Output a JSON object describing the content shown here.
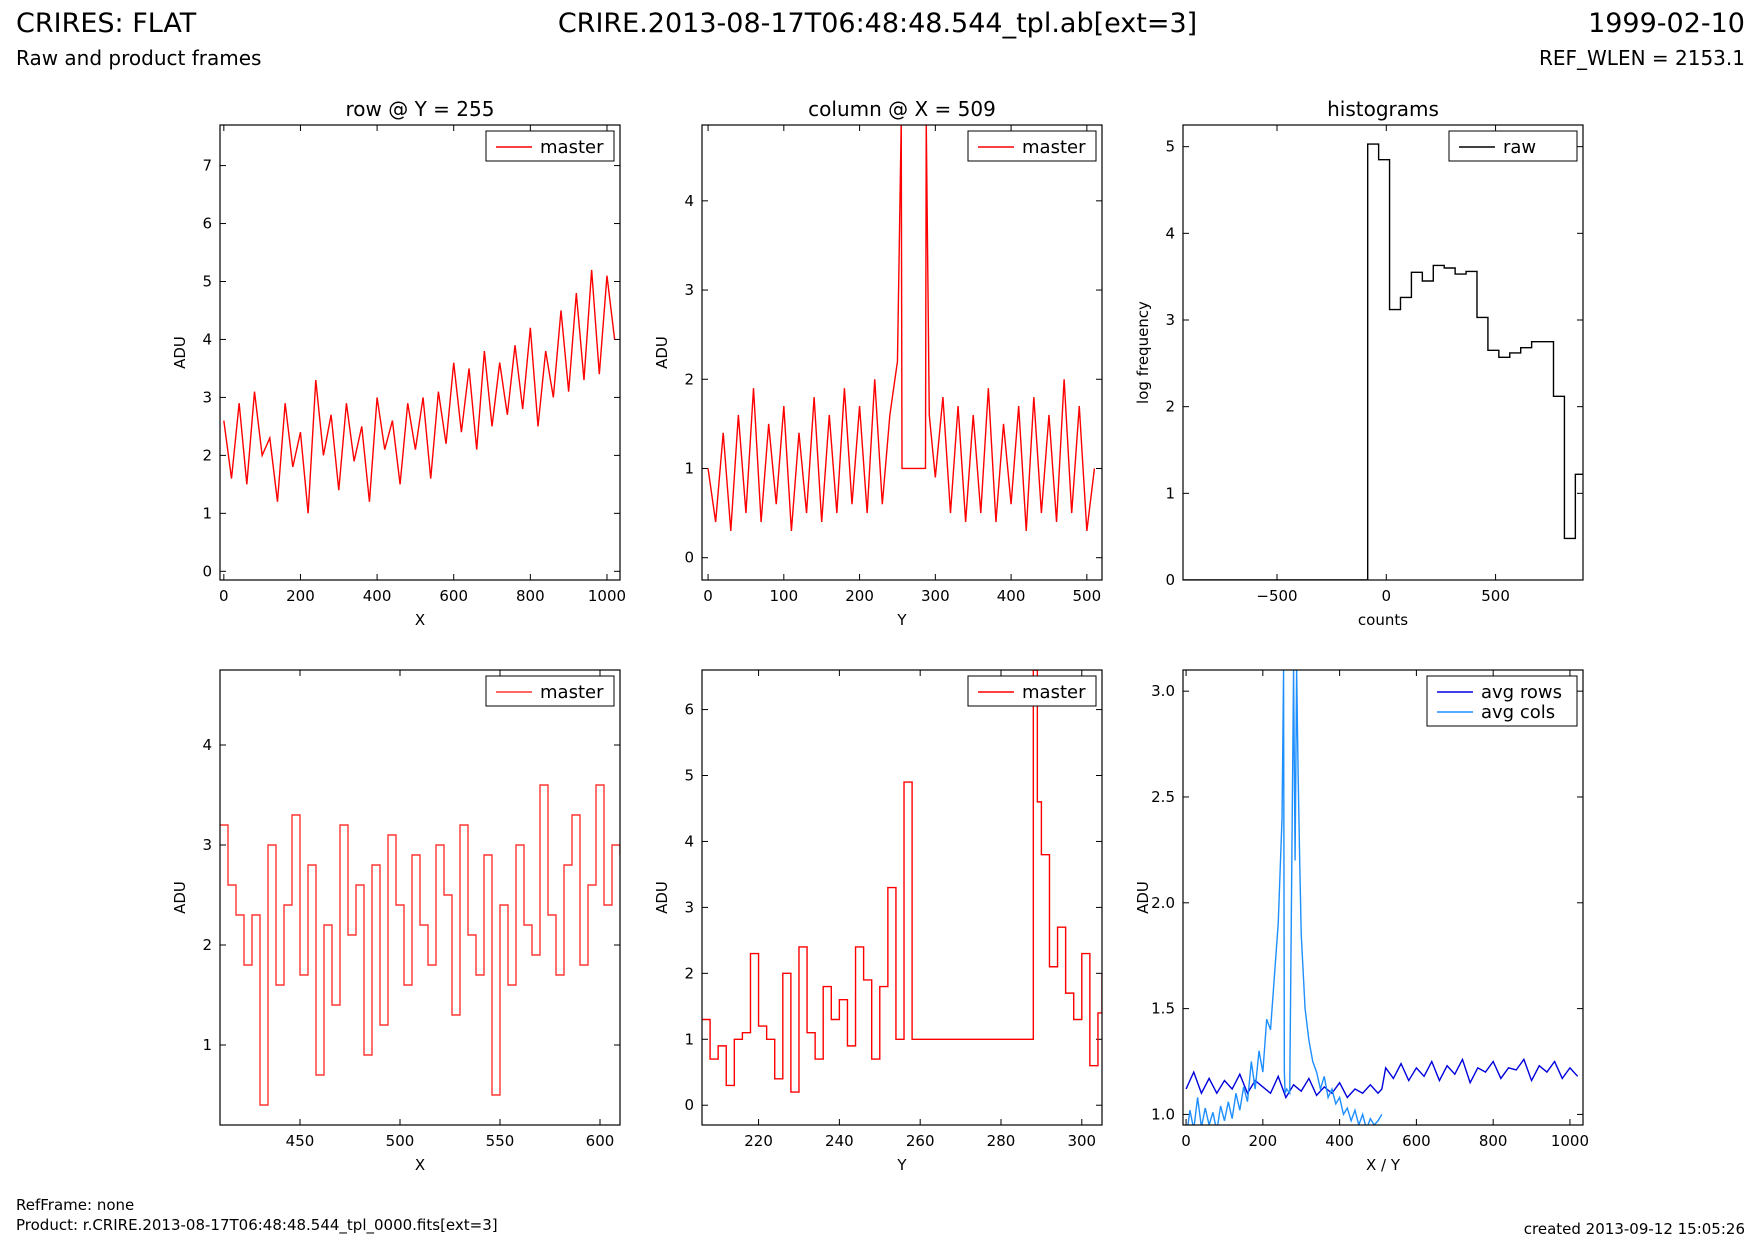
{
  "header": {
    "title": "CRIRES: FLAT",
    "subtitle": "Raw and product frames",
    "filename": "CRIRE.2013-08-17T06:48:48.544_tpl.ab[ext=3]",
    "date": "1999-02-10",
    "ref_wlen": "REF_WLEN = 2153.1"
  },
  "footer": {
    "ref_frame": "RefFrame: none",
    "product": "Product: r.CRIRE.2013-08-17T06:48:48.544_tpl_0000.fits[ext=3]",
    "created": "created 2013-09-12 15:05:26"
  },
  "colors": {
    "master": "#ff0000",
    "raw": "#000000",
    "avg_rows": "#0000dd",
    "avg_cols": "#1e8fff"
  },
  "chart_data": [
    {
      "id": "row-plot",
      "type": "line",
      "title": "row @ Y = 255",
      "xlabel": "X",
      "ylabel": "ADU",
      "xlim": [
        -10,
        1034
      ],
      "ylim": [
        -0.15,
        7.7
      ],
      "xticks": [
        0,
        200,
        400,
        600,
        800,
        1000
      ],
      "yticks": [
        0,
        1,
        2,
        3,
        4,
        5,
        6,
        7
      ],
      "legend": "top-right",
      "series": [
        {
          "name": "master",
          "color": "#ff0000",
          "step": false,
          "x": [
            0,
            20,
            40,
            60,
            80,
            100,
            120,
            140,
            160,
            180,
            200,
            220,
            240,
            260,
            280,
            300,
            320,
            340,
            360,
            380,
            400,
            420,
            440,
            460,
            480,
            500,
            520,
            540,
            560,
            580,
            600,
            620,
            640,
            660,
            680,
            700,
            720,
            740,
            760,
            780,
            800,
            820,
            840,
            860,
            880,
            900,
            920,
            940,
            960,
            980,
            1000,
            1020
          ],
          "y": [
            2.6,
            1.6,
            2.9,
            1.5,
            3.1,
            2.0,
            2.3,
            1.2,
            2.9,
            1.8,
            2.4,
            1.0,
            3.3,
            2.0,
            2.7,
            1.4,
            2.9,
            1.9,
            2.5,
            1.2,
            3.0,
            2.1,
            2.6,
            1.5,
            2.9,
            2.1,
            3.0,
            1.6,
            3.1,
            2.2,
            3.6,
            2.4,
            3.5,
            2.1,
            3.8,
            2.5,
            3.6,
            2.7,
            3.9,
            2.8,
            4.2,
            2.5,
            3.8,
            3.0,
            4.5,
            3.1,
            4.8,
            3.3,
            5.2,
            3.4,
            5.1,
            4.0
          ]
        }
      ]
    },
    {
      "id": "column-plot",
      "type": "line",
      "title": "column @ X = 509",
      "xlabel": "Y",
      "ylabel": "ADU",
      "xlim": [
        -8,
        520
      ],
      "ylim": [
        -0.25,
        4.85
      ],
      "xticks": [
        0,
        100,
        200,
        300,
        400,
        500
      ],
      "yticks": [
        0,
        1,
        2,
        3,
        4
      ],
      "legend": "top-right",
      "series": [
        {
          "name": "master",
          "color": "#ff0000",
          "step": false,
          "x": [
            0,
            10,
            20,
            30,
            40,
            50,
            60,
            70,
            80,
            90,
            100,
            110,
            120,
            130,
            140,
            150,
            160,
            170,
            180,
            190,
            200,
            210,
            220,
            230,
            240,
            250,
            255,
            256,
            287,
            288,
            292,
            300,
            310,
            320,
            330,
            340,
            350,
            360,
            370,
            380,
            390,
            400,
            410,
            420,
            430,
            440,
            450,
            460,
            470,
            480,
            490,
            500,
            510
          ],
          "y": [
            1.0,
            0.4,
            1.4,
            0.3,
            1.6,
            0.5,
            1.9,
            0.4,
            1.5,
            0.6,
            1.7,
            0.3,
            1.4,
            0.5,
            1.8,
            0.4,
            1.6,
            0.5,
            1.9,
            0.6,
            1.7,
            0.5,
            2.0,
            0.6,
            1.6,
            2.2,
            4.9,
            1.0,
            1.0,
            4.9,
            1.6,
            0.9,
            1.8,
            0.5,
            1.7,
            0.4,
            1.6,
            0.5,
            1.9,
            0.4,
            1.5,
            0.6,
            1.7,
            0.3,
            1.8,
            0.5,
            1.6,
            0.4,
            2.0,
            0.5,
            1.7,
            0.3,
            1.0
          ]
        }
      ]
    },
    {
      "id": "histogram-plot",
      "type": "line",
      "title": "histograms",
      "xlabel": "counts",
      "ylabel": "log frequency",
      "xlim": [
        -930,
        900
      ],
      "ylim": [
        0,
        5.25
      ],
      "xticks": [
        -500,
        0,
        500
      ],
      "yticks": [
        0,
        1,
        2,
        3,
        4,
        5
      ],
      "legend": "top-right",
      "series": [
        {
          "name": "raw",
          "color": "#000000",
          "step": true,
          "x": [
            -930,
            -85,
            -85,
            -35,
            -35,
            15,
            15,
            65,
            65,
            115,
            115,
            165,
            165,
            215,
            215,
            265,
            265,
            315,
            315,
            365,
            365,
            415,
            415,
            465,
            465,
            515,
            515,
            565,
            565,
            615,
            615,
            665,
            665,
            765,
            765,
            815,
            815,
            865,
            865,
            900
          ],
          "y": [
            0,
            0,
            5.03,
            5.03,
            4.85,
            4.85,
            3.12,
            3.12,
            3.26,
            3.26,
            3.55,
            3.55,
            3.45,
            3.45,
            3.63,
            3.63,
            3.6,
            3.6,
            3.53,
            3.53,
            3.56,
            3.56,
            3.03,
            3.03,
            2.65,
            2.65,
            2.57,
            2.57,
            2.62,
            2.62,
            2.68,
            2.68,
            2.75,
            2.75,
            2.12,
            2.12,
            0.48,
            0.48,
            1.22,
            1.22
          ]
        }
      ]
    },
    {
      "id": "row-zoom-plot",
      "type": "line",
      "title": "",
      "xlabel": "X",
      "ylabel": "ADU",
      "xlim": [
        410,
        610
      ],
      "ylim": [
        0.2,
        4.75
      ],
      "xticks": [
        450,
        500,
        550,
        600
      ],
      "yticks": [
        1,
        2,
        3,
        4
      ],
      "legend": "top-right",
      "series": [
        {
          "name": "master",
          "color": "#ff3333",
          "step": true,
          "x": [
            410,
            414,
            418,
            422,
            426,
            430,
            434,
            438,
            442,
            446,
            450,
            454,
            458,
            462,
            466,
            470,
            474,
            478,
            482,
            486,
            490,
            494,
            498,
            502,
            506,
            510,
            514,
            518,
            522,
            526,
            530,
            534,
            538,
            542,
            546,
            550,
            554,
            558,
            562,
            566,
            570,
            574,
            578,
            582,
            586,
            590,
            594,
            598,
            602,
            606,
            610
          ],
          "y": [
            3.2,
            2.6,
            2.3,
            1.8,
            2.3,
            0.4,
            3.0,
            1.6,
            2.4,
            3.3,
            1.7,
            2.8,
            0.7,
            2.2,
            1.4,
            3.2,
            2.1,
            2.6,
            0.9,
            2.8,
            1.2,
            3.1,
            2.4,
            1.6,
            2.9,
            2.2,
            1.8,
            3.0,
            2.5,
            1.3,
            3.2,
            2.1,
            1.7,
            2.9,
            0.5,
            2.4,
            1.6,
            3.0,
            2.2,
            1.9,
            3.6,
            2.3,
            1.7,
            2.8,
            3.3,
            1.8,
            2.6,
            3.6,
            2.4,
            3.0,
            2.9
          ]
        }
      ]
    },
    {
      "id": "column-zoom-plot",
      "type": "line",
      "title": "",
      "xlabel": "Y",
      "ylabel": "ADU",
      "xlim": [
        206,
        305
      ],
      "ylim": [
        -0.3,
        6.6
      ],
      "xticks": [
        220,
        240,
        260,
        280,
        300
      ],
      "yticks": [
        0,
        1,
        2,
        3,
        4,
        5,
        6
      ],
      "legend": "top-right",
      "series": [
        {
          "name": "master",
          "color": "#ff0000",
          "step": true,
          "x": [
            206,
            208,
            210,
            212,
            214,
            216,
            218,
            220,
            222,
            224,
            226,
            228,
            230,
            232,
            234,
            236,
            238,
            240,
            242,
            244,
            246,
            248,
            250,
            252,
            254,
            256,
            258,
            287,
            288,
            289,
            290,
            292,
            294,
            296,
            298,
            300,
            302,
            304,
            305
          ],
          "y": [
            1.3,
            0.7,
            0.9,
            0.3,
            1.0,
            1.1,
            2.3,
            1.2,
            1.0,
            0.4,
            2.0,
            0.2,
            2.4,
            1.1,
            0.7,
            1.8,
            1.3,
            1.6,
            0.9,
            2.4,
            1.9,
            0.7,
            1.8,
            3.3,
            1.0,
            4.9,
            1.0,
            1.0,
            6.6,
            4.6,
            3.8,
            2.1,
            2.7,
            1.7,
            1.3,
            2.3,
            0.6,
            1.4,
            2.0
          ]
        }
      ]
    },
    {
      "id": "avg-plot",
      "type": "line",
      "title": "",
      "xlabel": "X / Y",
      "ylabel": "ADU",
      "xlim": [
        -8,
        1034
      ],
      "ylim": [
        0.95,
        3.1
      ],
      "xticks": [
        0,
        200,
        400,
        600,
        800,
        1000
      ],
      "yticks": [
        1.0,
        1.5,
        2.0,
        2.5,
        3.0
      ],
      "legend": "top-right",
      "series": [
        {
          "name": "avg rows",
          "color": "#0000dd",
          "step": false,
          "x": [
            0,
            20,
            40,
            60,
            80,
            100,
            120,
            140,
            160,
            180,
            200,
            220,
            240,
            260,
            280,
            300,
            320,
            340,
            360,
            380,
            400,
            420,
            440,
            460,
            480,
            500,
            510,
            520,
            540,
            560,
            580,
            600,
            620,
            640,
            660,
            680,
            700,
            720,
            740,
            760,
            780,
            800,
            820,
            840,
            860,
            880,
            900,
            920,
            940,
            960,
            980,
            1000,
            1020
          ],
          "y": [
            1.12,
            1.2,
            1.1,
            1.17,
            1.1,
            1.16,
            1.12,
            1.19,
            1.1,
            1.16,
            1.13,
            1.1,
            1.18,
            1.08,
            1.14,
            1.11,
            1.17,
            1.09,
            1.13,
            1.1,
            1.15,
            1.08,
            1.12,
            1.1,
            1.14,
            1.1,
            1.12,
            1.22,
            1.17,
            1.24,
            1.16,
            1.22,
            1.18,
            1.25,
            1.16,
            1.23,
            1.19,
            1.26,
            1.15,
            1.22,
            1.2,
            1.25,
            1.17,
            1.22,
            1.21,
            1.26,
            1.16,
            1.23,
            1.2,
            1.25,
            1.17,
            1.22,
            1.18
          ]
        },
        {
          "name": "avg cols",
          "color": "#1e8fff",
          "step": false,
          "x": [
            0,
            10,
            20,
            30,
            40,
            50,
            60,
            70,
            80,
            90,
            100,
            110,
            120,
            130,
            140,
            150,
            160,
            170,
            180,
            190,
            200,
            210,
            220,
            230,
            240,
            250,
            254,
            256,
            258,
            262,
            270,
            280,
            284,
            288,
            292,
            296,
            300,
            310,
            320,
            330,
            340,
            350,
            360,
            370,
            380,
            390,
            400,
            410,
            420,
            430,
            440,
            450,
            460,
            470,
            480,
            490,
            500,
            510
          ],
          "y": [
            0.88,
            1.02,
            0.93,
            1.08,
            0.94,
            1.03,
            0.95,
            1.01,
            0.92,
            1.04,
            0.97,
            1.06,
            0.98,
            1.1,
            1.02,
            1.13,
            1.06,
            1.25,
            1.12,
            1.3,
            1.2,
            1.45,
            1.4,
            1.65,
            1.9,
            2.4,
            3.1,
            1.2,
            1.1,
            1.12,
            1.1,
            3.1,
            2.2,
            3.1,
            2.6,
            2.2,
            1.85,
            1.5,
            1.35,
            1.25,
            1.2,
            1.12,
            1.18,
            1.08,
            1.12,
            1.05,
            1.08,
            1.0,
            1.03,
            0.97,
            1.02,
            0.95,
            1.0,
            0.93,
            0.98,
            0.95,
            0.97,
            1.0
          ]
        }
      ]
    }
  ]
}
